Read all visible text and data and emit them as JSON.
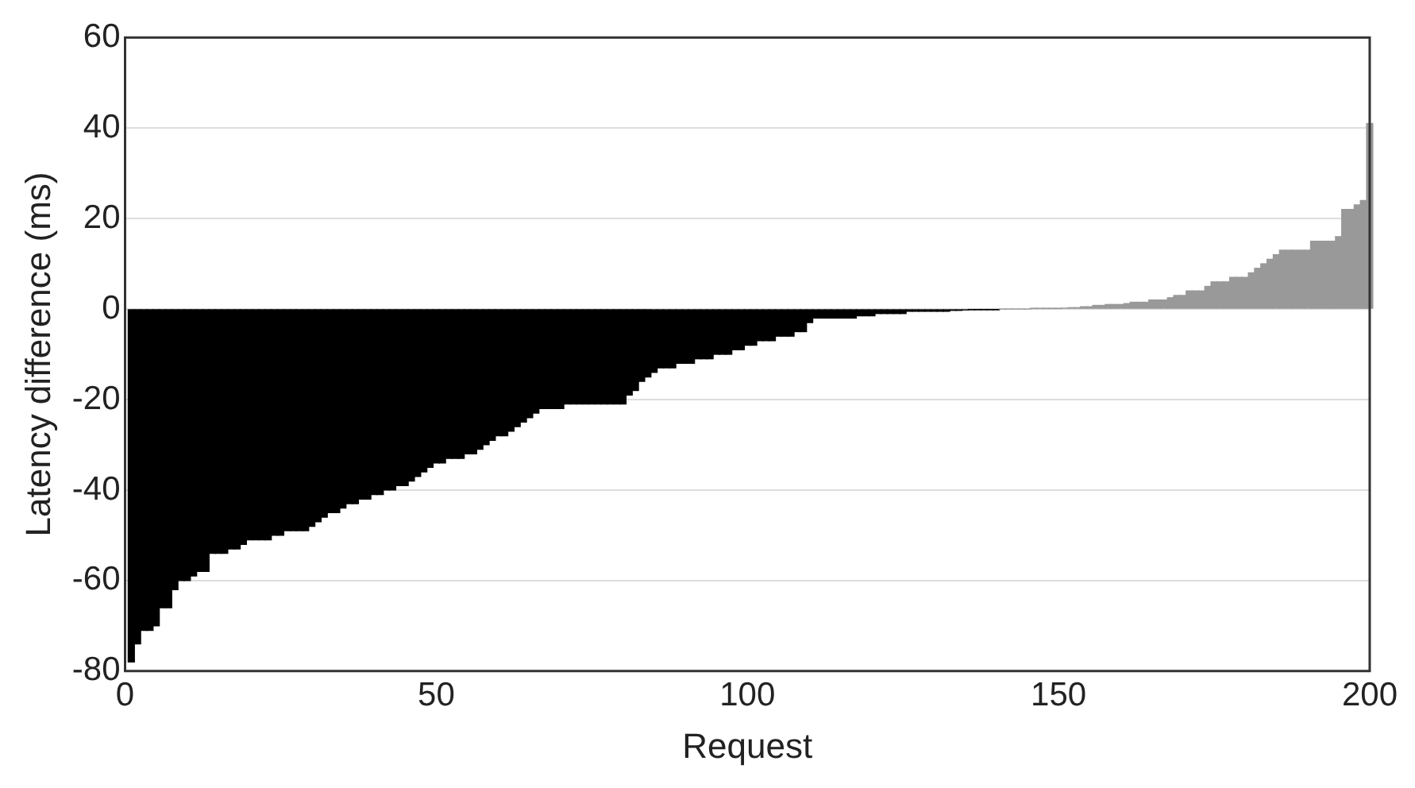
{
  "chart_data": {
    "type": "bar",
    "xlabel": "Request",
    "ylabel": "Latency difference (ms)",
    "x": [
      1,
      2,
      3,
      4,
      5,
      6,
      7,
      8,
      9,
      10,
      11,
      12,
      13,
      14,
      15,
      16,
      17,
      18,
      19,
      20,
      21,
      22,
      23,
      24,
      25,
      26,
      27,
      28,
      29,
      30,
      31,
      32,
      33,
      34,
      35,
      36,
      37,
      38,
      39,
      40,
      41,
      42,
      43,
      44,
      45,
      46,
      47,
      48,
      49,
      50,
      51,
      52,
      53,
      54,
      55,
      56,
      57,
      58,
      59,
      60,
      61,
      62,
      63,
      64,
      65,
      66,
      67,
      68,
      69,
      70,
      71,
      72,
      73,
      74,
      75,
      76,
      77,
      78,
      79,
      80,
      81,
      82,
      83,
      84,
      85,
      86,
      87,
      88,
      89,
      90,
      91,
      92,
      93,
      94,
      95,
      96,
      97,
      98,
      99,
      100,
      101,
      102,
      103,
      104,
      105,
      106,
      107,
      108,
      109,
      110,
      111,
      112,
      113,
      114,
      115,
      116,
      117,
      118,
      119,
      120,
      121,
      122,
      123,
      124,
      125,
      126,
      127,
      128,
      129,
      130,
      131,
      132,
      133,
      134,
      135,
      136,
      137,
      138,
      139,
      140,
      141,
      142,
      143,
      144,
      145,
      146,
      147,
      148,
      149,
      150,
      151,
      152,
      153,
      154,
      155,
      156,
      157,
      158,
      159,
      160,
      161,
      162,
      163,
      164,
      165,
      166,
      167,
      168,
      169,
      170,
      171,
      172,
      173,
      174,
      175,
      176,
      177,
      178,
      179,
      180,
      181,
      182,
      183,
      184,
      185,
      186,
      187,
      188,
      189,
      190,
      191,
      192,
      193,
      194,
      195,
      196,
      197,
      198,
      199,
      200
    ],
    "values": [
      -78,
      -74,
      -71,
      -71,
      -70,
      -66,
      -66,
      -62,
      -60,
      -60,
      -59,
      -58,
      -58,
      -54,
      -54,
      -54,
      -53,
      -53,
      -52,
      -51,
      -51,
      -51,
      -51,
      -50,
      -50,
      -49,
      -49,
      -49,
      -49,
      -48,
      -47,
      -46,
      -45,
      -45,
      -44,
      -43,
      -43,
      -42,
      -42,
      -41,
      -41,
      -40,
      -40,
      -39,
      -39,
      -38,
      -37,
      -36,
      -35,
      -34,
      -34,
      -33,
      -33,
      -33,
      -32,
      -32,
      -31,
      -30,
      -29,
      -28,
      -28,
      -27,
      -26,
      -25,
      -24,
      -23,
      -22,
      -22,
      -22,
      -22,
      -21,
      -21,
      -21,
      -21,
      -21,
      -21,
      -21,
      -21,
      -21,
      -21,
      -19,
      -18,
      -16,
      -15,
      -14,
      -13,
      -13,
      -13,
      -12,
      -12,
      -12,
      -11,
      -11,
      -11,
      -10,
      -10,
      -10,
      -9,
      -9,
      -8,
      -8,
      -7,
      -7,
      -7,
      -6,
      -6,
      -6,
      -5,
      -5,
      -3,
      -2,
      -2,
      -2,
      -2,
      -2,
      -2,
      -2,
      -1.5,
      -1.5,
      -1.5,
      -1,
      -1,
      -1,
      -1,
      -1,
      -0.5,
      -0.5,
      -0.5,
      -0.5,
      -0.5,
      -0.5,
      -0.5,
      -0.3,
      -0.3,
      -0.2,
      -0.1,
      -0.1,
      -0.1,
      -0.1,
      -0.1,
      0,
      0,
      0,
      0,
      0,
      0.1,
      0.1,
      0.1,
      0.1,
      0.1,
      0.2,
      0.3,
      0.3,
      0.5,
      0.5,
      0.8,
      0.8,
      1,
      1,
      1,
      1.2,
      1.5,
      1.5,
      1.5,
      2,
      2,
      2,
      2.5,
      3,
      3,
      4,
      4,
      4,
      5,
      6,
      6,
      6,
      7,
      7,
      7,
      8,
      9,
      10,
      11,
      12,
      13,
      13,
      13,
      13,
      13,
      15,
      15,
      15,
      15,
      16,
      22,
      22,
      23,
      24,
      41
    ],
    "colors": [
      "#000000",
      "#000000",
      "#000000",
      "#000000",
      "#000000",
      "#000000",
      "#000000",
      "#000000",
      "#000000",
      "#000000",
      "#000000",
      "#000000",
      "#000000",
      "#000000",
      "#000000",
      "#000000",
      "#000000",
      "#000000",
      "#000000",
      "#000000",
      "#000000",
      "#000000",
      "#000000",
      "#000000",
      "#000000",
      "#000000",
      "#000000",
      "#000000",
      "#000000",
      "#000000",
      "#000000",
      "#000000",
      "#000000",
      "#000000",
      "#000000",
      "#000000",
      "#000000",
      "#000000",
      "#000000",
      "#000000",
      "#000000",
      "#000000",
      "#000000",
      "#000000",
      "#000000",
      "#000000",
      "#000000",
      "#000000",
      "#000000",
      "#000000",
      "#000000",
      "#000000",
      "#000000",
      "#000000",
      "#000000",
      "#000000",
      "#000000",
      "#000000",
      "#000000",
      "#000000",
      "#000000",
      "#000000",
      "#000000",
      "#000000",
      "#000000",
      "#000000",
      "#000000",
      "#000000",
      "#000000",
      "#000000",
      "#000000",
      "#000000",
      "#000000",
      "#000000",
      "#000000",
      "#000000",
      "#000000",
      "#000000",
      "#000000",
      "#000000",
      "#000000",
      "#000000",
      "#000000",
      "#000000",
      "#000000",
      "#000000",
      "#000000",
      "#000000",
      "#000000",
      "#000000",
      "#000000",
      "#000000",
      "#000000",
      "#000000",
      "#000000",
      "#000000",
      "#000000",
      "#000000",
      "#000000",
      "#000000",
      "#000000",
      "#000000",
      "#000000",
      "#000000",
      "#000000",
      "#000000",
      "#000000",
      "#000000",
      "#000000",
      "#000000",
      "#000000",
      "#000000",
      "#000000",
      "#000000",
      "#000000",
      "#000000",
      "#000000",
      "#000000",
      "#000000",
      "#000000",
      "#000000",
      "#000000",
      "#000000",
      "#000000",
      "#000000",
      "#000000",
      "#000000",
      "#000000",
      "#000000",
      "#000000",
      "#000000",
      "#000000",
      "#000000",
      "#000000",
      "#000000",
      "#000000",
      "#000000",
      "#000000",
      "#000000",
      "#000000",
      "#999999",
      "#999999",
      "#999999",
      "#999999",
      "#999999",
      "#999999",
      "#999999",
      "#999999",
      "#999999",
      "#999999",
      "#999999",
      "#999999",
      "#999999",
      "#999999",
      "#999999",
      "#999999",
      "#999999",
      "#999999",
      "#999999",
      "#999999",
      "#999999",
      "#999999",
      "#999999",
      "#999999",
      "#999999",
      "#999999",
      "#999999",
      "#999999",
      "#999999",
      "#999999",
      "#999999",
      "#999999",
      "#999999",
      "#999999",
      "#999999",
      "#999999",
      "#999999",
      "#999999",
      "#999999",
      "#999999",
      "#999999",
      "#999999",
      "#999999",
      "#999999",
      "#999999",
      "#999999",
      "#999999",
      "#999999",
      "#999999",
      "#999999",
      "#999999",
      "#999999",
      "#999999",
      "#999999",
      "#999999",
      "#999999",
      "#999999",
      "#999999",
      "#999999",
      "#999999"
    ],
    "xlim": [
      0,
      200
    ],
    "xticks": [
      0,
      50,
      100,
      150,
      200
    ],
    "ylim": [
      -80,
      60
    ],
    "yticks": [
      -80,
      -60,
      -40,
      -20,
      0,
      20,
      40,
      60
    ],
    "grid": "y"
  }
}
